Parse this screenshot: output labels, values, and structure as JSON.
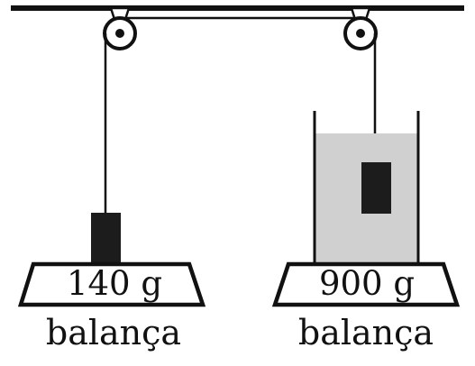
{
  "colors": {
    "ink": "#111111",
    "block": "#1c1c1c",
    "water": "#d0d0d0",
    "background": "#ffffff"
  },
  "left_scale": {
    "reading": "140 g",
    "caption": "balança"
  },
  "right_scale": {
    "reading": "900 g",
    "caption": "balança"
  }
}
